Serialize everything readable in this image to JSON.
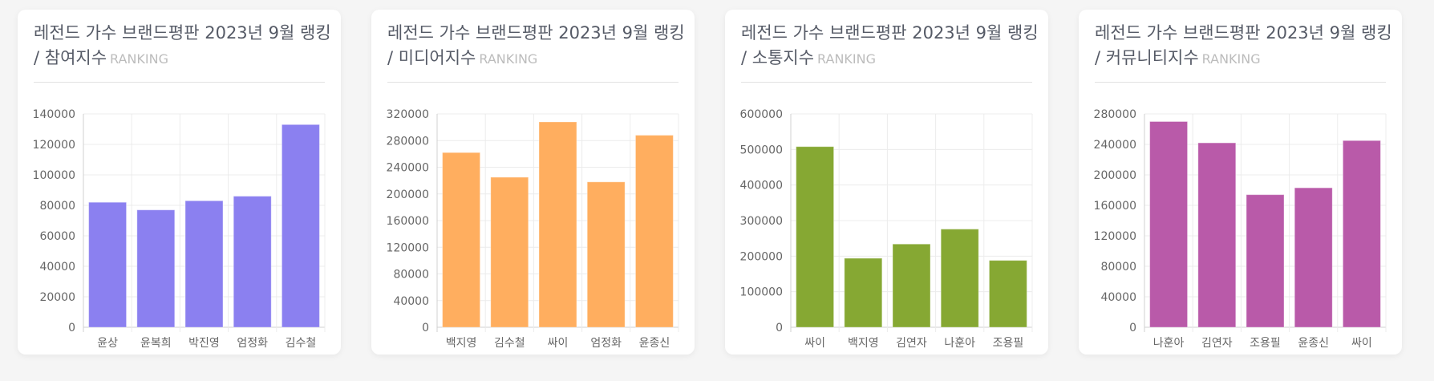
{
  "cards": [
    {
      "title": "레전드 가수 브랜드평판 2023년 9월 랭킹",
      "subtitle": "/ 참여지수",
      "tag": "RANKING",
      "color": "#8b80f0",
      "chart_data": {
        "type": "bar",
        "categories": [
          "윤상",
          "윤복희",
          "박진영",
          "엄정화",
          "김수철"
        ],
        "values": [
          82000,
          77000,
          83000,
          86000,
          133000
        ],
        "yticks": [
          0,
          20000,
          40000,
          60000,
          80000,
          100000,
          120000,
          140000
        ],
        "ylim": [
          0,
          140000
        ],
        "grid": true
      }
    },
    {
      "title": "레전드 가수 브랜드평판 2023년 9월 랭킹",
      "subtitle": "/ 미디어지수",
      "tag": "RANKING",
      "color": "#ffae5f",
      "chart_data": {
        "type": "bar",
        "categories": [
          "백지영",
          "김수철",
          "싸이",
          "엄정화",
          "윤종신"
        ],
        "values": [
          262000,
          225000,
          308000,
          218000,
          288000
        ],
        "yticks": [
          0,
          40000,
          80000,
          120000,
          160000,
          200000,
          240000,
          280000,
          320000
        ],
        "ylim": [
          0,
          320000
        ],
        "grid": true
      }
    },
    {
      "title": "레전드 가수 브랜드평판 2023년 9월 랭킹",
      "subtitle": "/ 소통지수",
      "tag": "RANKING",
      "color": "#86a833",
      "chart_data": {
        "type": "bar",
        "categories": [
          "싸이",
          "백지영",
          "김연자",
          "나훈아",
          "조용필"
        ],
        "values": [
          508000,
          194000,
          234000,
          276000,
          188000
        ],
        "yticks": [
          0,
          100000,
          200000,
          300000,
          400000,
          500000,
          600000
        ],
        "ylim": [
          0,
          600000
        ],
        "grid": true
      }
    },
    {
      "title": "레전드 가수 브랜드평판 2023년 9월 랭킹",
      "subtitle": "/ 커뮤니티지수",
      "tag": "RANKING",
      "color": "#b95aa9",
      "chart_data": {
        "type": "bar",
        "categories": [
          "나훈아",
          "김연자",
          "조용필",
          "윤종신",
          "싸이"
        ],
        "values": [
          270000,
          242000,
          174000,
          183000,
          245000
        ],
        "yticks": [
          0,
          40000,
          80000,
          120000,
          160000,
          200000,
          240000,
          280000
        ],
        "ylim": [
          0,
          280000
        ],
        "grid": true
      }
    }
  ]
}
